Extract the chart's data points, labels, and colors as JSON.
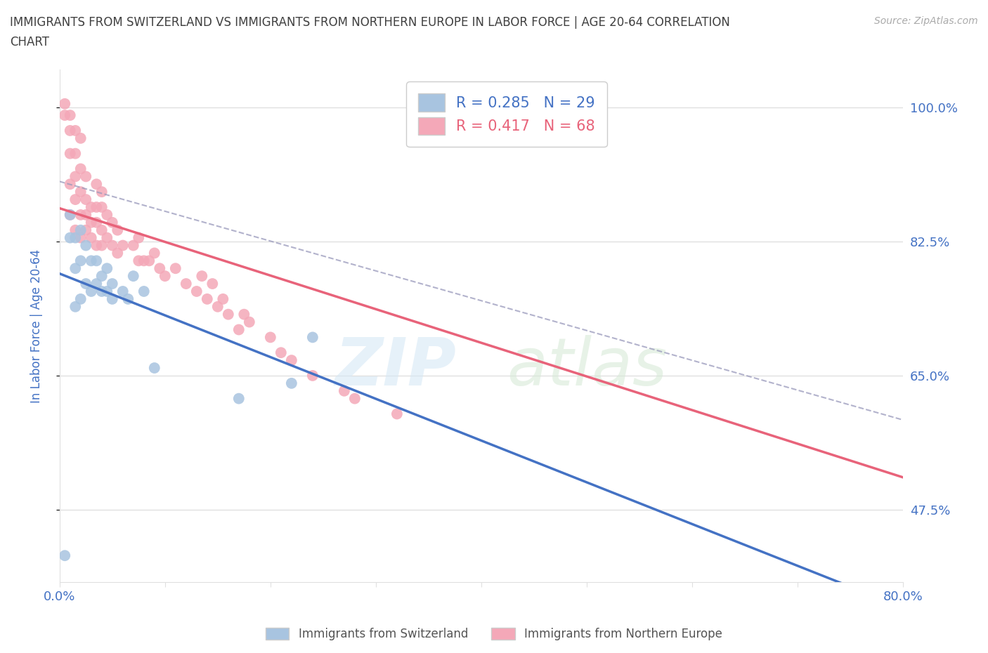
{
  "title": "IMMIGRANTS FROM SWITZERLAND VS IMMIGRANTS FROM NORTHERN EUROPE IN LABOR FORCE | AGE 20-64 CORRELATION\nCHART",
  "source": "Source: ZipAtlas.com",
  "ylabel": "In Labor Force | Age 20-64",
  "xlim": [
    0.0,
    0.8
  ],
  "ylim": [
    0.38,
    1.05
  ],
  "xticks": [
    0.0,
    0.1,
    0.2,
    0.3,
    0.4,
    0.5,
    0.6,
    0.7,
    0.8
  ],
  "yticks": [
    0.475,
    0.65,
    0.825,
    1.0
  ],
  "yticklabels": [
    "47.5%",
    "65.0%",
    "82.5%",
    "100.0%"
  ],
  "r_swiss": 0.285,
  "n_swiss": 29,
  "r_north": 0.417,
  "n_north": 68,
  "swiss_color": "#a8c4e0",
  "north_color": "#f4a8b8",
  "swiss_line_color": "#4472c4",
  "north_line_color": "#e8637a",
  "swiss_x": [
    0.005,
    0.01,
    0.01,
    0.015,
    0.015,
    0.015,
    0.02,
    0.02,
    0.02,
    0.025,
    0.025,
    0.03,
    0.03,
    0.035,
    0.035,
    0.04,
    0.04,
    0.045,
    0.045,
    0.05,
    0.05,
    0.06,
    0.065,
    0.07,
    0.08,
    0.09,
    0.17,
    0.22,
    0.24
  ],
  "swiss_y": [
    0.415,
    0.83,
    0.86,
    0.74,
    0.79,
    0.83,
    0.75,
    0.8,
    0.84,
    0.77,
    0.82,
    0.76,
    0.8,
    0.77,
    0.8,
    0.76,
    0.78,
    0.76,
    0.79,
    0.75,
    0.77,
    0.76,
    0.75,
    0.78,
    0.76,
    0.66,
    0.62,
    0.64,
    0.7
  ],
  "north_x": [
    0.005,
    0.005,
    0.01,
    0.01,
    0.01,
    0.01,
    0.01,
    0.015,
    0.015,
    0.015,
    0.015,
    0.015,
    0.02,
    0.02,
    0.02,
    0.02,
    0.02,
    0.025,
    0.025,
    0.025,
    0.025,
    0.03,
    0.03,
    0.03,
    0.035,
    0.035,
    0.035,
    0.035,
    0.04,
    0.04,
    0.04,
    0.04,
    0.045,
    0.045,
    0.05,
    0.05,
    0.055,
    0.055,
    0.06,
    0.07,
    0.075,
    0.075,
    0.08,
    0.085,
    0.09,
    0.095,
    0.1,
    0.11,
    0.12,
    0.13,
    0.135,
    0.14,
    0.145,
    0.15,
    0.155,
    0.16,
    0.17,
    0.175,
    0.18,
    0.2,
    0.21,
    0.22,
    0.24,
    0.27,
    0.28,
    0.32,
    0.43,
    0.5
  ],
  "north_y": [
    0.99,
    1.005,
    0.86,
    0.9,
    0.94,
    0.97,
    0.99,
    0.84,
    0.88,
    0.91,
    0.94,
    0.97,
    0.83,
    0.86,
    0.89,
    0.92,
    0.96,
    0.84,
    0.86,
    0.88,
    0.91,
    0.83,
    0.85,
    0.87,
    0.82,
    0.85,
    0.87,
    0.9,
    0.82,
    0.84,
    0.87,
    0.89,
    0.83,
    0.86,
    0.82,
    0.85,
    0.81,
    0.84,
    0.82,
    0.82,
    0.8,
    0.83,
    0.8,
    0.8,
    0.81,
    0.79,
    0.78,
    0.79,
    0.77,
    0.76,
    0.78,
    0.75,
    0.77,
    0.74,
    0.75,
    0.73,
    0.71,
    0.73,
    0.72,
    0.7,
    0.68,
    0.67,
    0.65,
    0.63,
    0.62,
    0.6,
    0.97,
    1.005
  ],
  "background_color": "#ffffff",
  "grid_color": "#e0e0e0",
  "title_color": "#404040",
  "tick_color": "#4472c4"
}
